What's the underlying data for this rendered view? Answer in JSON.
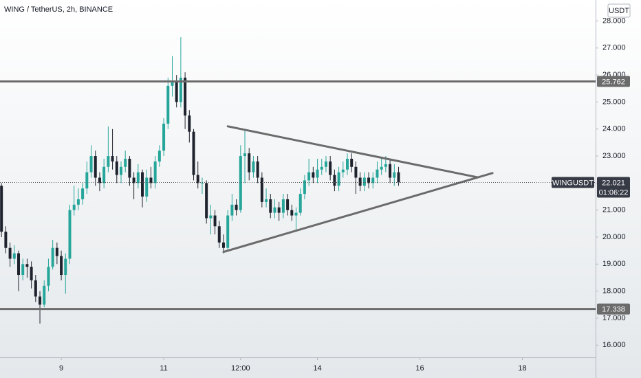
{
  "chart_data": {
    "type": "candlestick",
    "title": "WING / TetherUS, 2h, BINANCE",
    "currency": "USDT",
    "symbol": "WINGUSDT",
    "countdown": "01:06:22",
    "up_color": "#26a69a",
    "down_color": "#1e222d",
    "line_color": "#6b6b6b",
    "grid": false,
    "xlim": [
      -28.7,
      250.3
    ],
    "xticks": [
      {
        "value": 0,
        "label": "9"
      },
      {
        "value": 48,
        "label": "11"
      },
      {
        "value": 84,
        "label": "12:00"
      },
      {
        "value": 120,
        "label": "14"
      },
      {
        "value": 168,
        "label": "16"
      },
      {
        "value": 216,
        "label": "18"
      }
    ],
    "ylim": [
      15.548,
      28.776
    ],
    "yticks": [
      {
        "value": 16,
        "label": "16.000"
      },
      {
        "value": 17,
        "label": "17.000"
      },
      {
        "value": 18,
        "label": "18.000"
      },
      {
        "value": 19,
        "label": "19.000"
      },
      {
        "value": 20,
        "label": "20.000"
      },
      {
        "value": 21,
        "label": "21.000"
      },
      {
        "value": 22,
        "label": "22.000"
      },
      {
        "value": 23,
        "label": "23.000"
      },
      {
        "value": 24,
        "label": "24.000"
      },
      {
        "value": 25,
        "label": "25.000"
      },
      {
        "value": 26,
        "label": "26.000"
      },
      {
        "value": 27,
        "label": "27.000"
      },
      {
        "value": 28,
        "label": "28.000"
      }
    ],
    "x": [
      -28,
      -26,
      -24,
      -22,
      -20,
      -18,
      -16,
      -14,
      -12,
      -10,
      -8,
      -6,
      -4,
      -2,
      0,
      2,
      4,
      6,
      8,
      10,
      12,
      14,
      16,
      18,
      20,
      22,
      24,
      26,
      28,
      30,
      32,
      34,
      36,
      38,
      40,
      42,
      44,
      46,
      48,
      50,
      52,
      54,
      56,
      58,
      60,
      62,
      64,
      66,
      68,
      70,
      72,
      74,
      76,
      78,
      80,
      82,
      84,
      86,
      88,
      90,
      92,
      94,
      96,
      98,
      100,
      102,
      104,
      106,
      108,
      110,
      112,
      114,
      116,
      118,
      120,
      122,
      124,
      126,
      128,
      130,
      132,
      134,
      136,
      138,
      140,
      142,
      144,
      146,
      148,
      150,
      152,
      154,
      156,
      158
    ],
    "open": [
      21.9,
      20.2,
      19.6,
      19.2,
      19.4,
      18.6,
      19.0,
      18.9,
      18.4,
      17.8,
      17.5,
      18.2,
      18.9,
      19.6,
      19.3,
      18.6,
      19.2,
      21.0,
      21.2,
      21.4,
      21.8,
      22.4,
      23.0,
      22.2,
      22.0,
      22.6,
      23.0,
      22.8,
      22.3,
      22.6,
      22.9,
      22.2,
      22.0,
      22.4,
      21.5,
      22.2,
      22.0,
      22.8,
      23.2,
      24.2,
      25.6,
      25.8,
      25.0,
      25.9,
      24.5,
      23.9,
      22.3,
      22.0,
      22.0,
      20.7,
      20.8,
      20.4,
      19.8,
      19.6,
      20.8,
      21.2,
      21.0,
      23.0,
      23.1,
      22.4,
      22.8,
      22.2,
      21.3,
      21.4,
      20.9,
      21.1,
      20.9,
      21.4,
      21.0,
      20.8,
      20.9,
      21.6,
      22.1,
      22.4,
      22.2,
      22.5,
      22.6,
      22.8,
      22.3,
      21.9,
      22.4,
      22.5,
      22.9,
      22.6,
      22.2,
      21.9,
      22.2,
      22.0,
      22.2,
      22.5,
      22.6,
      22.7,
      22.2,
      22.4
    ],
    "high": [
      22.0,
      20.4,
      19.8,
      19.7,
      19.5,
      19.2,
      19.2,
      19.1,
      18.6,
      18.0,
      18.4,
      19.2,
      19.9,
      19.8,
      19.5,
      19.4,
      21.2,
      21.9,
      21.8,
      22.0,
      22.8,
      23.4,
      23.2,
      22.4,
      22.9,
      24.1,
      24.0,
      23.0,
      22.8,
      23.2,
      23.0,
      22.4,
      22.7,
      22.5,
      22.5,
      22.6,
      23.0,
      23.4,
      24.4,
      25.9,
      26.7,
      26.0,
      27.4,
      26.1,
      24.7,
      24.0,
      22.8,
      22.2,
      22.1,
      21.2,
      21.0,
      20.6,
      20.1,
      21.0,
      21.6,
      21.4,
      23.4,
      24.0,
      23.3,
      23.0,
      23.0,
      22.4,
      21.8,
      21.6,
      21.4,
      21.3,
      21.6,
      21.6,
      21.2,
      21.1,
      21.8,
      22.3,
      22.9,
      22.6,
      22.9,
      22.9,
      23.0,
      23.0,
      22.5,
      22.6,
      22.8,
      23.1,
      23.1,
      22.8,
      22.4,
      22.4,
      22.4,
      22.4,
      22.8,
      22.9,
      23.0,
      22.9,
      22.7,
      22.6
    ],
    "low": [
      20.0,
      19.4,
      18.9,
      19.0,
      18.0,
      18.4,
      18.5,
      18.1,
      17.6,
      16.8,
      17.4,
      18.0,
      18.8,
      19.0,
      18.4,
      17.9,
      19.0,
      20.8,
      21.0,
      21.2,
      21.6,
      22.2,
      21.9,
      21.7,
      21.8,
      22.4,
      22.5,
      22.0,
      22.0,
      22.4,
      21.9,
      21.4,
      21.8,
      21.1,
      21.3,
      21.8,
      21.8,
      22.6,
      23.0,
      24.0,
      25.2,
      24.8,
      24.8,
      24.0,
      23.5,
      22.1,
      21.8,
      21.6,
      20.5,
      20.1,
      20.1,
      19.6,
      19.4,
      19.5,
      20.6,
      20.8,
      20.9,
      22.0,
      22.1,
      22.2,
      22.0,
      21.1,
      21.1,
      20.7,
      20.7,
      20.6,
      20.7,
      20.8,
      20.6,
      20.2,
      20.8,
      21.4,
      21.9,
      22.0,
      22.0,
      22.3,
      22.4,
      22.1,
      21.7,
      21.7,
      22.2,
      22.3,
      22.4,
      21.6,
      21.7,
      21.7,
      21.8,
      21.8,
      22.0,
      22.3,
      22.4,
      22.0,
      21.9,
      21.9
    ],
    "close": [
      20.2,
      19.6,
      19.2,
      19.4,
      18.6,
      19.0,
      18.9,
      18.4,
      17.8,
      17.5,
      18.2,
      18.9,
      19.6,
      19.3,
      18.6,
      19.2,
      21.0,
      21.2,
      21.4,
      21.8,
      22.4,
      23.0,
      22.2,
      22.0,
      22.6,
      23.0,
      22.8,
      22.3,
      22.6,
      22.9,
      22.2,
      22.0,
      22.4,
      21.5,
      22.2,
      22.0,
      22.8,
      23.2,
      24.2,
      25.6,
      25.8,
      25.0,
      25.9,
      24.5,
      23.9,
      22.3,
      22.0,
      22.0,
      20.7,
      20.8,
      20.4,
      19.8,
      19.6,
      20.8,
      21.2,
      21.0,
      23.0,
      23.1,
      22.4,
      22.8,
      22.2,
      21.3,
      21.4,
      20.9,
      21.1,
      20.9,
      21.4,
      21.0,
      20.8,
      20.9,
      21.6,
      22.1,
      22.4,
      22.2,
      22.5,
      22.6,
      22.8,
      22.3,
      21.9,
      22.4,
      22.5,
      22.9,
      22.6,
      22.2,
      21.9,
      22.2,
      22.0,
      22.2,
      22.5,
      22.6,
      22.7,
      22.2,
      22.4,
      22.021
    ],
    "levels": [
      25.762,
      17.338
    ],
    "trendlines": [
      {
        "x": [
          78,
          195.2
        ],
        "y": [
          24.1,
          22.21
        ]
      },
      {
        "x": [
          76,
          202
        ],
        "y": [
          19.45,
          22.37
        ]
      }
    ]
  }
}
